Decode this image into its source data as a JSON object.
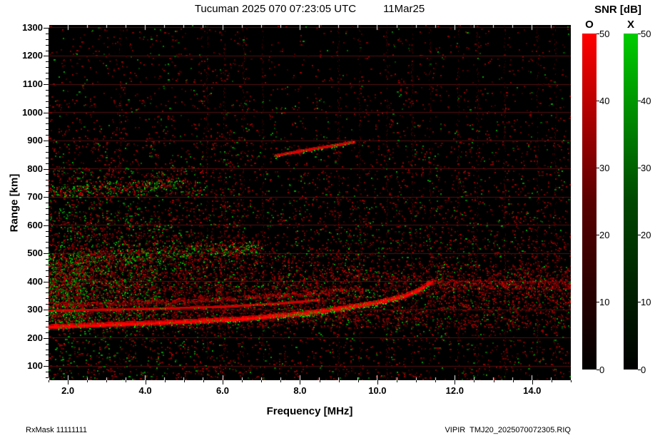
{
  "header": {
    "title": "Tucuman 2025 070 07:23:05 UTC",
    "date": "11Mar25"
  },
  "footer": {
    "left": "RxMask 11111111",
    "right": "VIPIR  TMJ20_2025070072305.RIQ"
  },
  "colorbar": {
    "title": "SNR [dB]",
    "o_label": "O",
    "x_label": "X",
    "tick_values": [
      0,
      10,
      20,
      30,
      40,
      50
    ],
    "tick_labels": [
      "0",
      "10",
      "20",
      "30",
      "40",
      "50"
    ],
    "o_color": "#ff0000",
    "x_color": "#00cc00"
  },
  "chart_data": {
    "type": "heatmap",
    "title": "Tucuman 2025 070 07:23:05 UTC 11Mar25",
    "xlabel": "Frequency [MHz]",
    "ylabel": "Range [km]",
    "xlim": [
      1.5,
      15.0
    ],
    "ylim": [
      50,
      1310
    ],
    "x_tick_values": [
      2,
      4,
      6,
      8,
      10,
      12,
      14
    ],
    "x_tick_labels": [
      "2.0",
      "4.0",
      "6.0",
      "8.0",
      "10.0",
      "12.0",
      "14.0"
    ],
    "x_minor_step": 0.5,
    "y_tick_values": [
      100,
      200,
      300,
      400,
      500,
      600,
      700,
      800,
      900,
      1000,
      1100,
      1200,
      1300
    ],
    "y_tick_labels": [
      "100",
      "200",
      "300",
      "400",
      "500",
      "600",
      "700",
      "800",
      "900",
      "1000",
      "1100",
      "1200",
      "1300"
    ],
    "y_minor_step": 20,
    "background": "#000000",
    "grid": {
      "horizontal": true,
      "color": "rgba(185,30,30,0.45)"
    },
    "colorbar": {
      "label": "SNR [dB]",
      "min": 0,
      "max": 50,
      "ticks": [
        0,
        10,
        20,
        30,
        40,
        50
      ]
    },
    "rfi_lines_mhz": [
      3.35,
      5.6,
      6.05,
      6.55,
      7.05,
      9.0,
      9.55,
      10.25,
      10.9,
      11.35,
      12.1,
      12.6,
      13.3,
      14.15,
      14.6
    ],
    "traces": [
      {
        "name": "F-layer echo 1st hop",
        "points": [
          [
            1.5,
            238
          ],
          [
            3,
            246
          ],
          [
            5,
            256
          ],
          [
            6.5,
            266
          ],
          [
            8,
            284
          ],
          [
            9,
            302
          ],
          [
            10,
            324
          ],
          [
            10.7,
            347
          ],
          [
            11.1,
            370
          ],
          [
            11.42,
            400
          ]
        ],
        "halfwidth_km": 9,
        "brightness": 1.0,
        "green_mix": "mid",
        "green_boost_f": [
          7.4,
          10.7
        ],
        "green_boost": 0.55,
        "style": "solid"
      },
      {
        "name": "stratification 1",
        "points": [
          [
            1.5,
            296
          ],
          [
            4,
            302
          ],
          [
            6,
            310
          ],
          [
            7.5,
            322
          ],
          [
            8.5,
            334
          ]
        ],
        "halfwidth_km": 4,
        "brightness": 0.8,
        "green_mix": "low",
        "style": "solid"
      },
      {
        "name": "stratification 2",
        "points": [
          [
            1.5,
            318
          ],
          [
            4,
            326
          ],
          [
            6,
            338
          ],
          [
            8,
            356
          ],
          [
            9.5,
            378
          ]
        ],
        "halfwidth_km": 5,
        "brightness": 0.5,
        "green_mix": "low",
        "style": "speckle"
      },
      {
        "name": "spread plateau right side",
        "points": [
          [
            11.2,
            392
          ],
          [
            15,
            390
          ]
        ],
        "halfwidth_km": 10,
        "brightness": 0.55,
        "green_mix": "low",
        "style": "speckle"
      },
      {
        "name": "2nd hop echo",
        "points": [
          [
            1.5,
            478
          ],
          [
            3,
            490
          ],
          [
            4.5,
            500
          ],
          [
            6,
            512
          ],
          [
            7,
            524
          ]
        ],
        "halfwidth_km": 14,
        "brightness": 0.6,
        "green_mix": "high",
        "style": "speckle"
      },
      {
        "name": "3rd hop echo",
        "points": [
          [
            1.5,
            718
          ],
          [
            2.5,
            726
          ],
          [
            4,
            740
          ],
          [
            5,
            752
          ]
        ],
        "halfwidth_km": 12,
        "brightness": 0.5,
        "green_mix": "high",
        "style": "speckle"
      },
      {
        "name": "oblique echo",
        "points": [
          [
            7.35,
            845
          ],
          [
            8.3,
            868
          ],
          [
            9.4,
            893
          ]
        ],
        "halfwidth_km": 6,
        "brightness": 0.85,
        "green_mix": "mid",
        "style": "solid"
      }
    ],
    "diffuse_regions": [
      {
        "name": "left low-range clutter",
        "f": [
          1.5,
          2.4
        ],
        "r": [
          255,
          470
        ],
        "density": 0.8,
        "green": 0.55
      },
      {
        "name": "low-freq clutter",
        "f": [
          1.5,
          4.3
        ],
        "r": [
          250,
          485
        ],
        "density": 0.35,
        "green": 0.4
      },
      {
        "name": "F-region spread",
        "f": [
          1.5,
          11.2
        ],
        "r": [
          255,
          435
        ],
        "density": 0.22,
        "green": 0.12
      },
      {
        "name": "2nd hop spread",
        "f": [
          1.5,
          7.0
        ],
        "r": [
          440,
          548
        ],
        "density": 0.22,
        "green": 0.3
      },
      {
        "name": "mid multiples",
        "f": [
          1.5,
          5.2
        ],
        "r": [
          556,
          628
        ],
        "density": 0.12,
        "green": 0.25
      },
      {
        "name": "3rd hop spread",
        "f": [
          1.5,
          5.6
        ],
        "r": [
          700,
          806
        ],
        "density": 0.16,
        "green": 0.3
      },
      {
        "name": "right-side band",
        "f": [
          11.3,
          15.0
        ],
        "r": [
          300,
          462
        ],
        "density": 0.22,
        "green": 0.07
      },
      {
        "name": "8-9 MHz clutter",
        "f": [
          7.2,
          9.6
        ],
        "r": [
          260,
          520
        ],
        "density": 0.16,
        "green": 0.15
      }
    ],
    "noise": {
      "base_density": 0.17,
      "range_scale_km": 430,
      "low_freq_boost": 1.5,
      "green_fraction": 0.15,
      "seed": 77
    }
  }
}
